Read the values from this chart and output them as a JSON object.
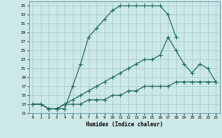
{
  "xlabel": "Humidex (Indice chaleur)",
  "background_color": "#cce8e8",
  "grid_color": "#aacccc",
  "line_color": "#1e6b5a",
  "markersize": 2.5,
  "linewidth": 0.9,
  "xlim": [
    -0.5,
    23.5
  ],
  "ylim": [
    11,
    36
  ],
  "xticks": [
    0,
    1,
    2,
    3,
    4,
    5,
    6,
    7,
    8,
    9,
    10,
    11,
    12,
    13,
    14,
    15,
    16,
    17,
    18,
    19,
    20,
    21,
    22,
    23
  ],
  "yticks": [
    11,
    13,
    15,
    17,
    19,
    21,
    23,
    25,
    27,
    29,
    31,
    33,
    35
  ],
  "curve1_x": [
    0,
    1,
    2,
    3,
    4,
    5,
    6,
    7,
    8,
    9,
    10,
    11,
    12,
    13,
    14,
    15,
    16,
    17,
    18
  ],
  "curve1_y": [
    13,
    13,
    12,
    12,
    12,
    17,
    22,
    28,
    30,
    32,
    34,
    35,
    35,
    35,
    35,
    35,
    35,
    33,
    28
  ],
  "curve2_x": [
    0,
    1,
    2,
    3,
    4,
    5,
    6,
    7,
    8,
    9,
    10,
    11,
    12,
    13,
    14,
    15,
    16,
    17,
    18,
    19,
    20,
    21,
    22,
    23
  ],
  "curve2_y": [
    13,
    13,
    12,
    12,
    13,
    14,
    15,
    16,
    17,
    18,
    19,
    20,
    21,
    22,
    23,
    23,
    24,
    28,
    25,
    22,
    20,
    22,
    21,
    18
  ],
  "curve3_x": [
    0,
    1,
    2,
    3,
    4,
    5,
    6,
    7,
    8,
    9,
    10,
    11,
    12,
    13,
    14,
    15,
    16,
    17,
    18,
    19,
    20,
    21,
    22,
    23
  ],
  "curve3_y": [
    13,
    13,
    12,
    12,
    13,
    13,
    13,
    14,
    14,
    14,
    15,
    15,
    16,
    16,
    17,
    17,
    17,
    17,
    18,
    18,
    18,
    18,
    18,
    18
  ]
}
